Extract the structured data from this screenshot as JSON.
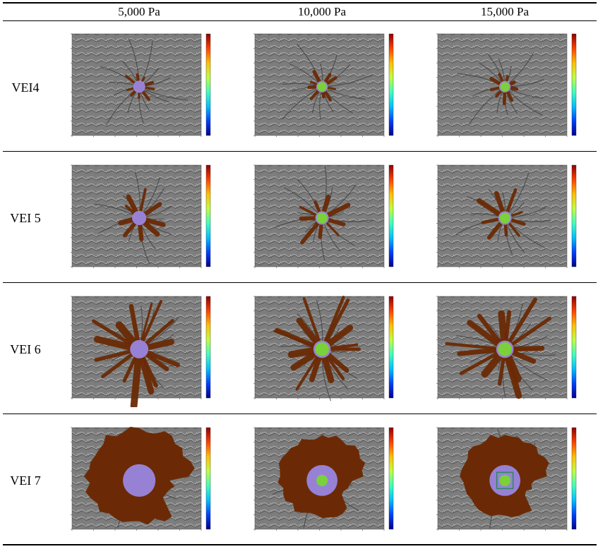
{
  "table": {
    "columns": [
      "5,000 Pa",
      "10,000 Pa",
      "15,000 Pa"
    ],
    "rows": [
      {
        "label": "VEI4",
        "extent": 0.16,
        "core": 0.06
      },
      {
        "label": "VEI 5",
        "extent": 0.3,
        "core": 0.07
      },
      {
        "label": "VEI 6",
        "extent": 0.55,
        "core": 0.09
      },
      {
        "label": "VEI 7",
        "extent": 0.95,
        "core": 0.16
      }
    ]
  },
  "colors": {
    "flow": "#6b2a05",
    "core_low": "#9a86e0",
    "core_high": "#7ad13a",
    "hillshade": "#7d7d7d",
    "colorbar": [
      "#00008f",
      "#0040ff",
      "#00c0ff",
      "#40ffbf",
      "#bfff40",
      "#ffc000",
      "#ff4000",
      "#8f0000"
    ]
  }
}
